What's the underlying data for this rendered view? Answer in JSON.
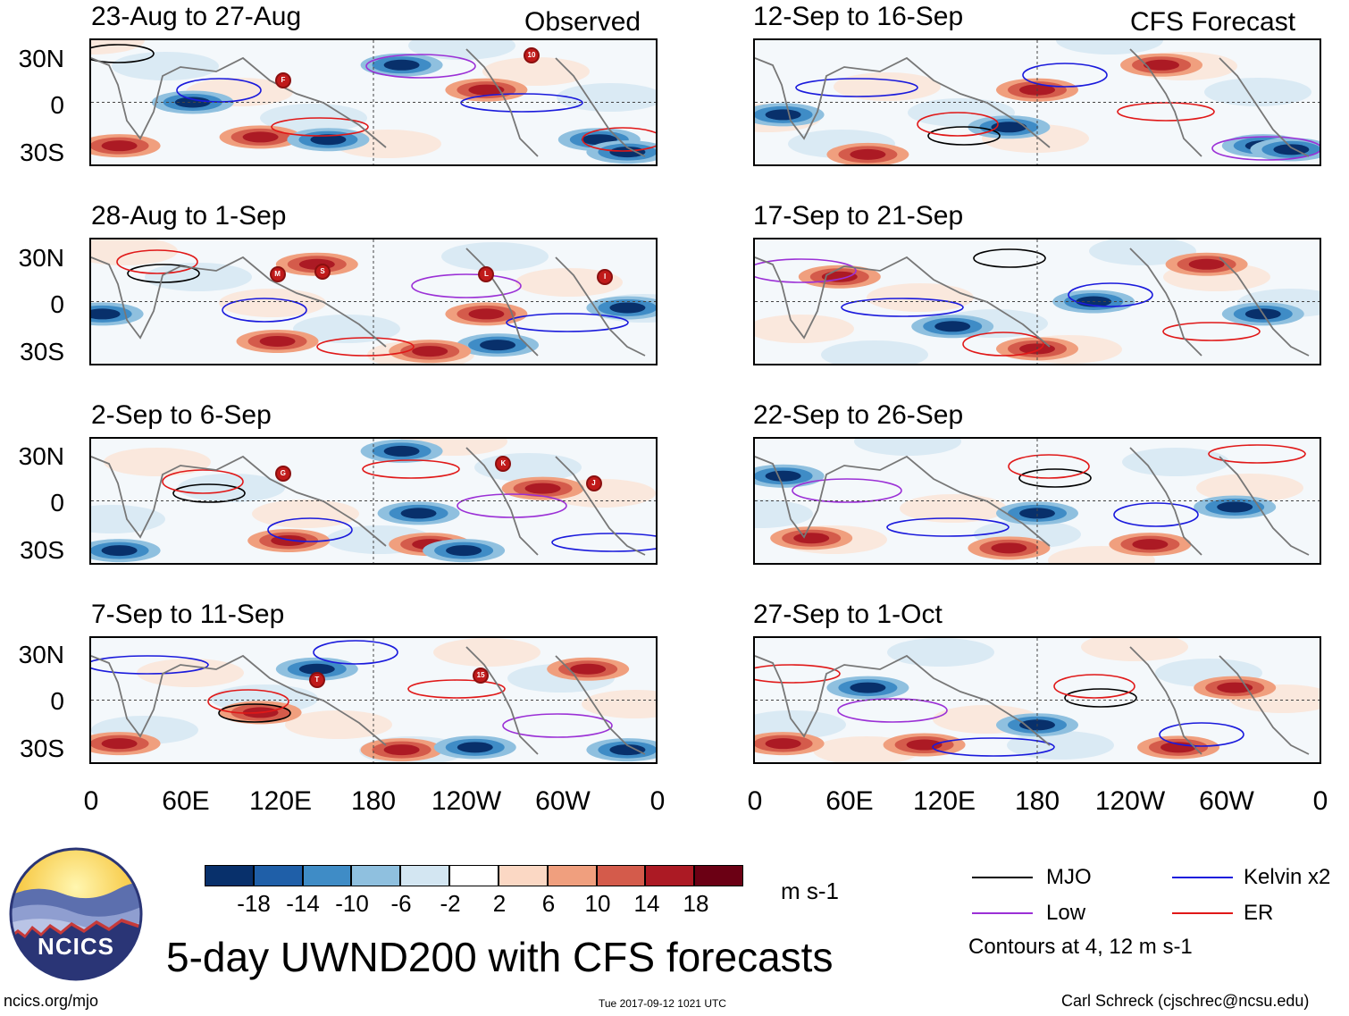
{
  "observed_label": "Observed",
  "forecast_label": "CFS Forecast",
  "panels_left": [
    {
      "title": "23-Aug to 27-Aug"
    },
    {
      "title": "28-Aug to 1-Sep"
    },
    {
      "title": "2-Sep to 6-Sep"
    },
    {
      "title": "7-Sep to 11-Sep"
    }
  ],
  "panels_right": [
    {
      "title": "12-Sep to 16-Sep"
    },
    {
      "title": "17-Sep to 21-Sep"
    },
    {
      "title": "22-Sep to 26-Sep"
    },
    {
      "title": "27-Sep to 1-Oct"
    }
  ],
  "lat_labels": [
    "30N",
    "0",
    "30S"
  ],
  "lon_labels": [
    "0",
    "60E",
    "120E",
    "180",
    "120W",
    "60W",
    "0"
  ],
  "colorbar": {
    "ticks": [
      "-18",
      "-14",
      "-10",
      "-6",
      "-2",
      "2",
      "6",
      "10",
      "14",
      "18"
    ],
    "units": "m s-1",
    "colors": [
      "#08306b",
      "#1f5fa8",
      "#3f8cc6",
      "#8fc0df",
      "#d3e6f2",
      "#ffffff",
      "#fbd8c4",
      "#f09f7e",
      "#d45b4b",
      "#ac1a24",
      "#6b0014"
    ]
  },
  "legend": {
    "mjo": "MJO",
    "kelvin": "Kelvin x2",
    "low": "Low",
    "er": "ER",
    "note": "Contours at 4, 12 m s-1",
    "colors": {
      "mjo": "#000000",
      "kelvin": "#1a1adc",
      "low": "#9b30d6",
      "er": "#e01818"
    }
  },
  "logo_text": "NCICS",
  "main_title": "5-day UWND200 with CFS forecasts",
  "footer": {
    "left": "ncics.org/mjo",
    "center": "Tue 2017-09-12 1021 UTC",
    "right": "Carl Schreck (cjschrec@ncsu.edu)"
  },
  "storm_markers": [
    [
      "F",
      "10"
    ],
    [
      "M",
      "S",
      "L",
      "I"
    ],
    [
      "G",
      "K",
      "J"
    ],
    [
      "T",
      "15"
    ]
  ]
}
